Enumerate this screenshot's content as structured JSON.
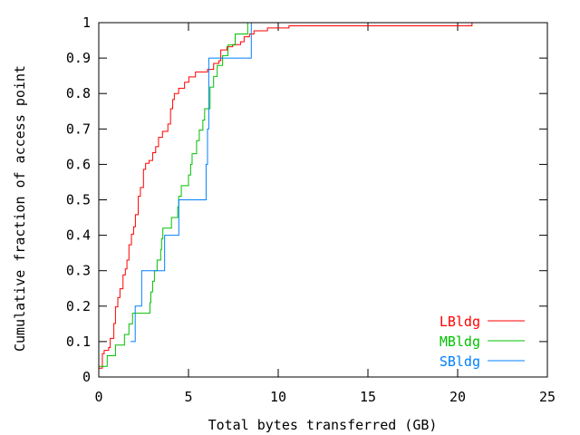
{
  "chart_data": {
    "type": "line",
    "title": "",
    "xlabel": "Total bytes transferred (GB)",
    "ylabel": "Cumulative fraction of access point",
    "xlim": [
      0,
      25
    ],
    "ylim": [
      0,
      1
    ],
    "xticks": [
      "0",
      "5",
      "10",
      "15",
      "20",
      "25"
    ],
    "yticks": [
      "0",
      "0.1",
      "0.2",
      "0.3",
      "0.4",
      "0.5",
      "0.6",
      "0.7",
      "0.8",
      "0.9",
      "1"
    ],
    "grid": false,
    "legend_position": "bottom-right",
    "step": true,
    "series": [
      {
        "name": "LBldg",
        "color": "#ff0000",
        "x": [
          0,
          0.0,
          0.2,
          0.3,
          0.55,
          0.64,
          0.84,
          0.93,
          1.06,
          1.18,
          1.35,
          1.48,
          1.57,
          1.68,
          1.82,
          1.94,
          2.04,
          2.2,
          2.32,
          2.49,
          2.61,
          2.8,
          3.0,
          3.17,
          3.33,
          3.55,
          3.85,
          4.0,
          4.12,
          4.21,
          4.45,
          4.78,
          5.02,
          5.39,
          6.06,
          6.4,
          6.7,
          6.8,
          7.15,
          7.46,
          7.9,
          8.1,
          8.4,
          8.65,
          9.4,
          10.6,
          20.8
        ],
        "y": [
          0,
          0.025,
          0.066,
          0.075,
          0.083,
          0.109,
          0.151,
          0.198,
          0.224,
          0.249,
          0.288,
          0.305,
          0.33,
          0.373,
          0.403,
          0.424,
          0.458,
          0.51,
          0.535,
          0.586,
          0.603,
          0.611,
          0.633,
          0.65,
          0.676,
          0.693,
          0.714,
          0.757,
          0.783,
          0.8,
          0.815,
          0.832,
          0.847,
          0.861,
          0.868,
          0.885,
          0.893,
          0.923,
          0.932,
          0.938,
          0.946,
          0.96,
          0.968,
          0.977,
          0.985,
          0.991,
          1.0
        ]
      },
      {
        "name": "MBldg",
        "color": "#00c000",
        "x": [
          0,
          0.0,
          0.47,
          0.93,
          1.43,
          1.68,
          1.88,
          2.85,
          2.9,
          3.0,
          3.1,
          3.25,
          3.45,
          3.5,
          3.57,
          4.05,
          4.4,
          4.45,
          4.6,
          5.0,
          5.12,
          5.2,
          5.45,
          5.6,
          5.8,
          5.9,
          6.2,
          6.4,
          6.6,
          6.9,
          7.2,
          7.6,
          8.3
        ],
        "y": [
          0,
          0.03,
          0.06,
          0.09,
          0.12,
          0.15,
          0.18,
          0.21,
          0.24,
          0.27,
          0.3,
          0.33,
          0.36,
          0.39,
          0.42,
          0.45,
          0.48,
          0.51,
          0.54,
          0.57,
          0.6,
          0.63,
          0.667,
          0.697,
          0.725,
          0.757,
          0.818,
          0.848,
          0.879,
          0.907,
          0.937,
          0.968,
          1.0
        ]
      },
      {
        "name": "SBldg",
        "color": "#0080ff",
        "x": [
          1.77,
          2.03,
          2.39,
          3.67,
          4.46,
          5.98,
          6.06,
          6.13,
          8.5
        ],
        "y": [
          0.1,
          0.2,
          0.3,
          0.4,
          0.5,
          0.6,
          0.7,
          0.9,
          1.0
        ]
      }
    ]
  }
}
